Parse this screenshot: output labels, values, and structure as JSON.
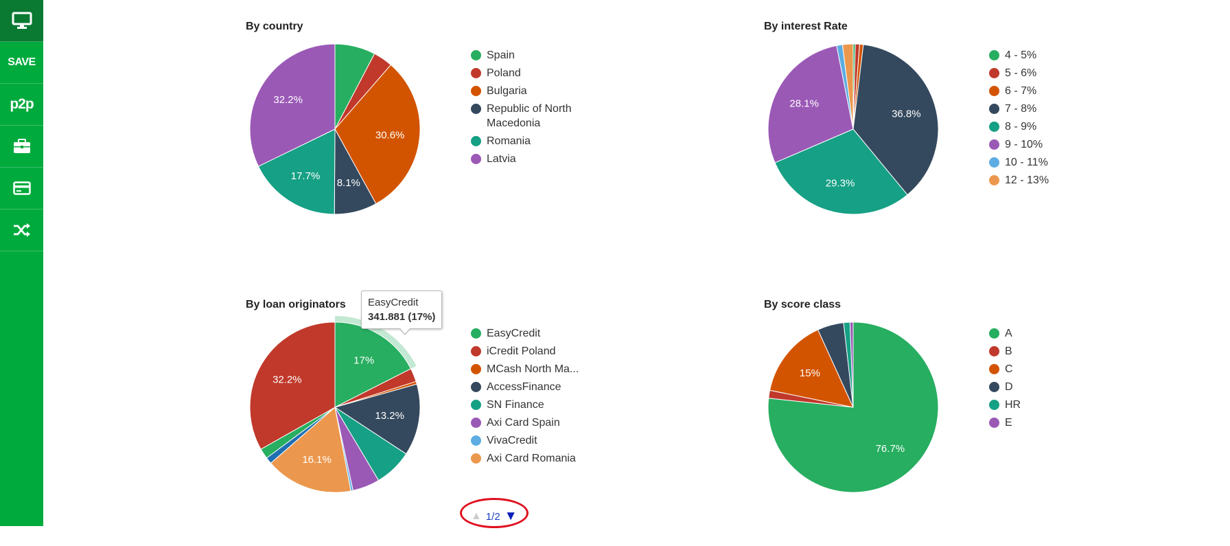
{
  "sidebar": {
    "items": [
      {
        "icon": "monitor-icon",
        "active": true
      },
      {
        "icon": "save-icon",
        "text": "SAVE"
      },
      {
        "icon": "p2p-icon",
        "text": "p2p"
      },
      {
        "icon": "briefcase-icon"
      },
      {
        "icon": "credit-card-icon"
      },
      {
        "icon": "shuffle-icon"
      }
    ]
  },
  "chart_data": [
    {
      "type": "pie",
      "title": "By country",
      "slices": [
        {
          "label": "Spain",
          "value": 7.7,
          "color": "#27ae60"
        },
        {
          "label": "Poland",
          "value": 3.7,
          "color": "#c0392b"
        },
        {
          "label": "Bulgaria",
          "value": 30.6,
          "color": "#d35400",
          "data_label": "30.6%"
        },
        {
          "label": "Republic of North Macedonia",
          "value": 8.1,
          "color": "#34495e",
          "data_label": "8.1%"
        },
        {
          "label": "Romania",
          "value": 17.7,
          "color": "#16a085",
          "data_label": "17.7%"
        },
        {
          "label": "Latvia",
          "value": 32.2,
          "color": "#9b59b6",
          "data_label": "32.2%"
        }
      ]
    },
    {
      "type": "pie",
      "title": "By interest Rate",
      "slices": [
        {
          "label": "4 - 5%",
          "value": 0.4,
          "color": "#27ae60"
        },
        {
          "label": "5 - 6%",
          "value": 0.8,
          "color": "#c0392b"
        },
        {
          "label": "6 - 7%",
          "value": 0.7,
          "color": "#d35400"
        },
        {
          "label": "7 - 8%",
          "value": 36.8,
          "color": "#34495e",
          "data_label": "36.8%"
        },
        {
          "label": "8 - 9%",
          "value": 29.3,
          "color": "#16a085",
          "data_label": "29.3%"
        },
        {
          "label": "9 - 10%",
          "value": 28.1,
          "color": "#9b59b6",
          "data_label": "28.1%"
        },
        {
          "label": "10 - 11%",
          "value": 1.1,
          "color": "#5dade2"
        },
        {
          "label": "12 - 13%",
          "value": 2.0,
          "color": "#eb984e"
        }
      ]
    },
    {
      "type": "pie",
      "title": "By loan originators",
      "slices": [
        {
          "label": "EasyCredit",
          "value": 17,
          "color": "#27ae60",
          "data_label": "17%"
        },
        {
          "label": "iCredit Poland",
          "value": 2.5,
          "color": "#c0392b"
        },
        {
          "label": "MCash North Ma...",
          "value": 0.5,
          "color": "#d35400"
        },
        {
          "label": "AccessFinance",
          "value": 13.2,
          "color": "#34495e",
          "data_label": "13.2%"
        },
        {
          "label": "SN Finance",
          "value": 7.0,
          "color": "#16a085"
        },
        {
          "label": "Axi Card Spain",
          "value": 5.0,
          "color": "#9b59b6"
        },
        {
          "label": "VivaCredit",
          "value": 0.4,
          "color": "#5dade2"
        },
        {
          "label": "Axi Card Romania",
          "value": 16.1,
          "color": "#eb984e",
          "data_label": "16.1%"
        },
        {
          "value": 1.2,
          "color": "#1f6fb2"
        },
        {
          "value": 1.9,
          "color": "#27ae60"
        },
        {
          "value": 32.2,
          "color": "#c0392b",
          "data_label": "32.2%"
        }
      ],
      "highlight_index": 0,
      "tooltip": {
        "label": "EasyCredit",
        "value": "341.881 (17%)"
      },
      "pager": {
        "text": "1/2"
      }
    },
    {
      "type": "pie",
      "title": "By score class",
      "slices": [
        {
          "label": "A",
          "value": 76.7,
          "color": "#27ae60",
          "data_label": "76.7%"
        },
        {
          "label": "B",
          "value": 1.5,
          "color": "#c0392b"
        },
        {
          "label": "C",
          "value": 15,
          "color": "#d35400",
          "data_label": "15%"
        },
        {
          "label": "D",
          "value": 5.0,
          "color": "#34495e"
        },
        {
          "label": "HR",
          "value": 1.2,
          "color": "#16a085"
        },
        {
          "label": "E",
          "value": 0.6,
          "color": "#9b59b6"
        }
      ]
    }
  ]
}
